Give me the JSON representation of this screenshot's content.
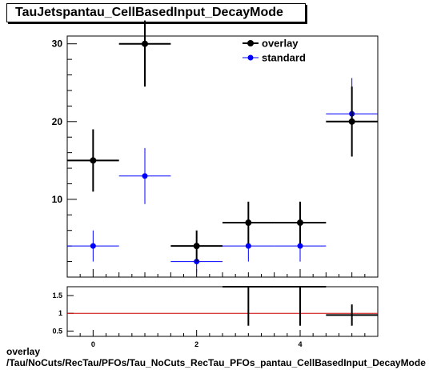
{
  "title": "TauJetspantau_CellBasedInput_DecayMode",
  "caption": {
    "line1": "overlay",
    "line2": "/Tau/NoCuts/RecTau/PFOs/Tau_NoCuts_RecTau_PFOs_pantau_CellBasedInput_DecayMode"
  },
  "legend": {
    "placement": "top-right",
    "entries": [
      "overlay",
      "standard"
    ]
  },
  "colors": {
    "overlay": "#000000",
    "standard": "#0000ff",
    "ratio_line": "#cc0000"
  },
  "chart_data": [
    {
      "type": "scatter",
      "panel": "main",
      "xlim": [
        -0.5,
        5.5
      ],
      "ylim": [
        0,
        31
      ],
      "y_ticks_labeled": [
        10,
        20,
        30
      ],
      "series": [
        {
          "name": "overlay",
          "points": [
            {
              "x": 0,
              "xerr": 0.5,
              "y": 15,
              "yerr": 4
            },
            {
              "x": 1,
              "xerr": 0.5,
              "y": 30,
              "yerr": 5.5
            },
            {
              "x": 2,
              "xerr": 0.5,
              "y": 4,
              "yerr": 2
            },
            {
              "x": 3,
              "xerr": 0.5,
              "y": 7,
              "yerr": 2.7
            },
            {
              "x": 4,
              "xerr": 0.5,
              "y": 7,
              "yerr": 2.7
            },
            {
              "x": 5,
              "xerr": 0.5,
              "y": 20,
              "yerr": 4.5
            }
          ]
        },
        {
          "name": "standard",
          "points": [
            {
              "x": 0,
              "xerr": 0.5,
              "y": 4,
              "yerr": 2
            },
            {
              "x": 1,
              "xerr": 0.5,
              "y": 13,
              "yerr": 3.6
            },
            {
              "x": 2,
              "xerr": 0.5,
              "y": 2,
              "yerr": 1.4
            },
            {
              "x": 3,
              "xerr": 0.5,
              "y": 4,
              "yerr": 2
            },
            {
              "x": 4,
              "xerr": 0.5,
              "y": 4,
              "yerr": 2
            },
            {
              "x": 5,
              "xerr": 0.5,
              "y": 21,
              "yerr": 4.6
            }
          ]
        }
      ]
    },
    {
      "type": "scatter",
      "panel": "ratio",
      "xlim": [
        -0.5,
        5.5
      ],
      "ylim": [
        0.35,
        1.75
      ],
      "x_tick_labels": [
        "0",
        "2",
        "4"
      ],
      "y_tick_labels": [
        "0.5",
        "1",
        "1.5"
      ],
      "reference_line": 1,
      "series": [
        {
          "name": "overlay",
          "points": [
            {
              "x": 3,
              "xerr": 0.5,
              "y": 1.75,
              "yerr_low": 1.1
            },
            {
              "x": 4,
              "xerr": 0.5,
              "y": 1.75,
              "yerr_low": 1.1
            },
            {
              "x": 5,
              "xerr": 0.5,
              "y": 0.95,
              "yerr": 0.3
            }
          ]
        }
      ]
    }
  ]
}
